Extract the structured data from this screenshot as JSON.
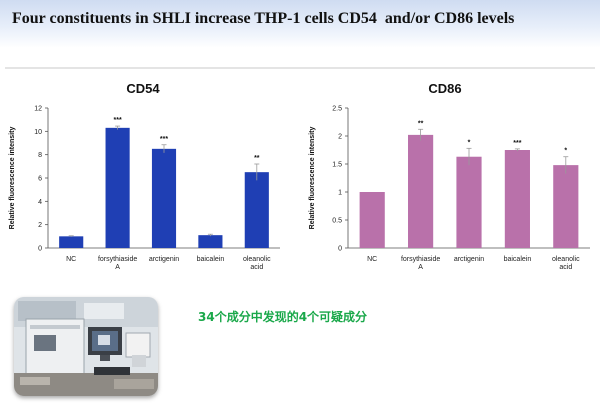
{
  "header": {
    "title": "Four constituents in SHLI increase THP-1 cells CD54  and/or CD86 levels"
  },
  "caption": "34个成分中发现的4个可疑成分",
  "colors": {
    "cd54_bar": "#1f3fb4",
    "cd86_bar": "#b971aa",
    "caption": "#1aa84a",
    "header_band": "#cfdcf1"
  },
  "chart_data": [
    {
      "type": "bar",
      "title": "CD54",
      "ylabel": "Relative fluorescence intensity",
      "xlabel": "",
      "categories": [
        "NC",
        "forsythiaside A",
        "arctigenin",
        "baicalein",
        "oleanolic acid"
      ],
      "category_lines": [
        [
          "NC"
        ],
        [
          "forsythiaside",
          "A"
        ],
        [
          "arctigenin"
        ],
        [
          "baicalein"
        ],
        [
          "oleanolic",
          "acid"
        ]
      ],
      "values": [
        1.0,
        10.3,
        8.5,
        1.1,
        6.5
      ],
      "errors": [
        0.05,
        0.15,
        0.35,
        0.08,
        0.7
      ],
      "significance": [
        "",
        "***",
        "***",
        "",
        "**"
      ],
      "ylim": [
        0,
        12
      ],
      "yticks": [
        "0",
        "2",
        "4",
        "6",
        "8",
        "10",
        "12"
      ],
      "grid": false,
      "color": "#1f3fb4"
    },
    {
      "type": "bar",
      "title": "CD86",
      "ylabel": "Relative fluorescence intensity",
      "xlabel": "",
      "categories": [
        "NC",
        "forsythiaside A",
        "arctigenin",
        "baicalein",
        "oleanolic acid"
      ],
      "category_lines": [
        [
          "NC"
        ],
        [
          "forsythiaside",
          "A"
        ],
        [
          "arctigenin"
        ],
        [
          "baicalein"
        ],
        [
          "oleanolic",
          "acid"
        ]
      ],
      "values": [
        1.0,
        2.02,
        1.63,
        1.75,
        1.48
      ],
      "errors": [
        0.0,
        0.1,
        0.15,
        0.02,
        0.15
      ],
      "significance": [
        "",
        "**",
        "*",
        "***",
        "*"
      ],
      "ylim": [
        0,
        2.5
      ],
      "yticks": [
        "0",
        "0.5",
        "1",
        "1.5",
        "2",
        "2.5"
      ],
      "grid": false,
      "color": "#b971aa"
    }
  ]
}
